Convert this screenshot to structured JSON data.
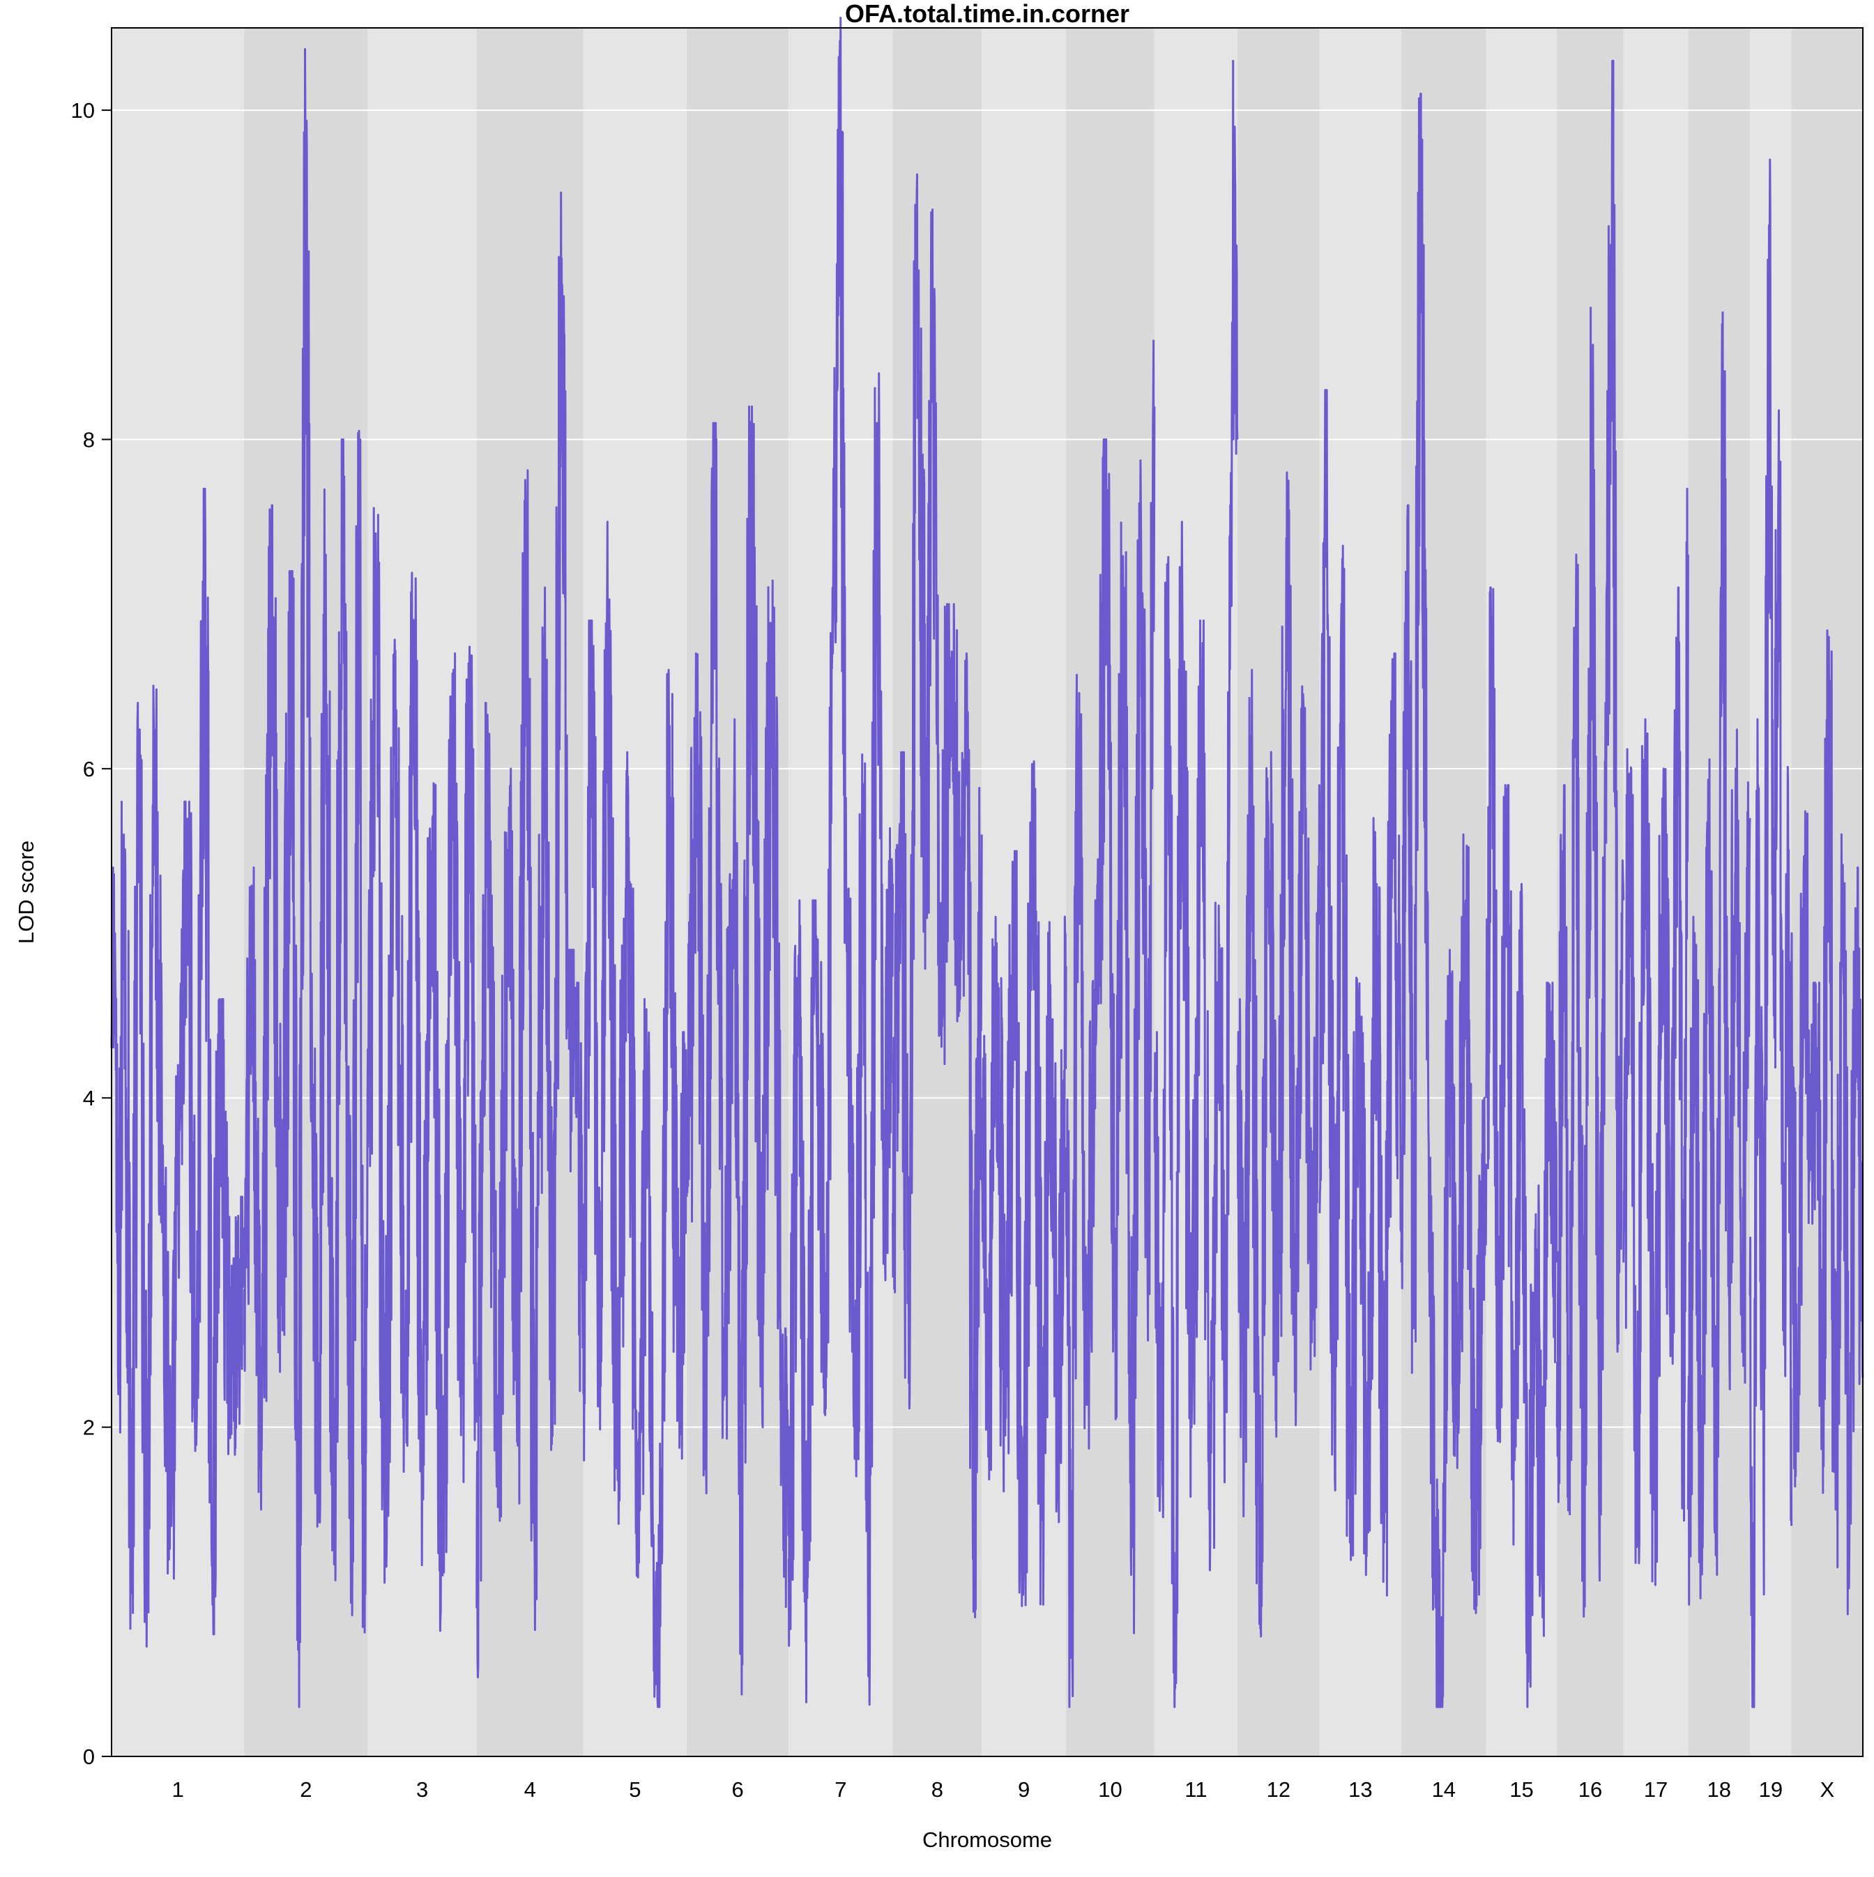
{
  "chart_data": {
    "type": "line",
    "title": "OFA.total.time.in.corner",
    "xlabel": "Chromosome",
    "ylabel": "LOD score",
    "ylim": [
      0,
      10.5
    ],
    "yticks": [
      0,
      2,
      4,
      6,
      8,
      10
    ],
    "grid": true,
    "legend": "none",
    "colors": {
      "line": "#6a5acd",
      "band_light": "#e5e5e5",
      "band_dark": "#d9d9d9",
      "gridline": "#ffffff"
    },
    "chromosomes": [
      {
        "label": "1",
        "length": 195,
        "peaks": [
          [
            0,
            4.3
          ],
          [
            5,
            5.0
          ],
          [
            10,
            2.2
          ],
          [
            18,
            5.6
          ],
          [
            30,
            1.3
          ],
          [
            40,
            6.0
          ],
          [
            52,
            1.2
          ],
          [
            62,
            6.3
          ],
          [
            75,
            3.5
          ],
          [
            88,
            1.4
          ],
          [
            100,
            3.8
          ],
          [
            112,
            5.4
          ],
          [
            125,
            2.0
          ],
          [
            137,
            7.3
          ],
          [
            148,
            1.3
          ],
          [
            160,
            4.2
          ],
          [
            175,
            2.4
          ],
          [
            195,
            3.0
          ]
        ]
      },
      {
        "label": "2",
        "length": 182,
        "peaks": [
          [
            0,
            2.5
          ],
          [
            12,
            5.0
          ],
          [
            25,
            1.5
          ],
          [
            40,
            7.2
          ],
          [
            55,
            2.8
          ],
          [
            70,
            6.8
          ],
          [
            80,
            0.9
          ],
          [
            90,
            10.0
          ],
          [
            100,
            3.9
          ],
          [
            110,
            2.0
          ],
          [
            120,
            7.3
          ],
          [
            132,
            1.5
          ],
          [
            145,
            7.6
          ],
          [
            158,
            1.4
          ],
          [
            170,
            8.0
          ],
          [
            176,
            1.1
          ],
          [
            182,
            4.3
          ]
        ]
      },
      {
        "label": "3",
        "length": 160,
        "peaks": [
          [
            0,
            3.7
          ],
          [
            12,
            7.2
          ],
          [
            25,
            1.4
          ],
          [
            40,
            6.4
          ],
          [
            55,
            2.2
          ],
          [
            68,
            6.9
          ],
          [
            80,
            1.8
          ],
          [
            95,
            5.7
          ],
          [
            110,
            1.1
          ],
          [
            125,
            6.3
          ],
          [
            138,
            2.2
          ],
          [
            150,
            6.5
          ],
          [
            160,
            2.3
          ]
        ]
      },
      {
        "label": "4",
        "length": 157,
        "peaks": [
          [
            0,
            0.9
          ],
          [
            15,
            6.0
          ],
          [
            30,
            1.9
          ],
          [
            48,
            5.6
          ],
          [
            60,
            2.0
          ],
          [
            72,
            7.6
          ],
          [
            85,
            1.4
          ],
          [
            100,
            6.7
          ],
          [
            112,
            2.3
          ],
          [
            125,
            9.1
          ],
          [
            135,
            4.5
          ],
          [
            145,
            4.3
          ],
          [
            157,
            2.8
          ]
        ]
      },
      {
        "label": "5",
        "length": 152,
        "peaks": [
          [
            0,
            2.2
          ],
          [
            12,
            6.5
          ],
          [
            25,
            2.5
          ],
          [
            35,
            7.1
          ],
          [
            50,
            2.0
          ],
          [
            65,
            5.7
          ],
          [
            80,
            1.3
          ],
          [
            95,
            4.2
          ],
          [
            105,
            0.5
          ],
          [
            115,
            1.5
          ],
          [
            125,
            6.2
          ],
          [
            140,
            2.4
          ],
          [
            152,
            4.0
          ]
        ]
      },
      {
        "label": "6",
        "length": 150,
        "peaks": [
          [
            0,
            3.4
          ],
          [
            15,
            6.3
          ],
          [
            28,
            2.2
          ],
          [
            40,
            7.7
          ],
          [
            55,
            2.4
          ],
          [
            70,
            5.9
          ],
          [
            80,
            1.1
          ],
          [
            95,
            7.8
          ],
          [
            110,
            2.6
          ],
          [
            125,
            6.8
          ],
          [
            140,
            2.2
          ],
          [
            150,
            1.4
          ]
        ]
      },
      {
        "label": "7",
        "length": 153,
        "peaks": [
          [
            0,
            1.2
          ],
          [
            15,
            4.8
          ],
          [
            25,
            0.7
          ],
          [
            40,
            4.8
          ],
          [
            55,
            2.6
          ],
          [
            65,
            6.7
          ],
          [
            75,
            10.3
          ],
          [
            85,
            5.0
          ],
          [
            98,
            2.0
          ],
          [
            110,
            5.9
          ],
          [
            118,
            0.9
          ],
          [
            130,
            8.1
          ],
          [
            140,
            3.5
          ],
          [
            153,
            5.3
          ]
        ]
      },
      {
        "label": "8",
        "length": 131,
        "peaks": [
          [
            0,
            3.3
          ],
          [
            12,
            5.7
          ],
          [
            25,
            2.2
          ],
          [
            35,
            9.3
          ],
          [
            50,
            5.3
          ],
          [
            58,
            9.0
          ],
          [
            70,
            4.8
          ],
          [
            85,
            6.6
          ],
          [
            100,
            5.0
          ],
          [
            110,
            6.3
          ],
          [
            118,
            1.2
          ],
          [
            131,
            5.6
          ]
        ]
      },
      {
        "label": "9",
        "length": 124,
        "peaks": [
          [
            0,
            4.0
          ],
          [
            10,
            1.9
          ],
          [
            20,
            4.7
          ],
          [
            35,
            2.2
          ],
          [
            48,
            5.1
          ],
          [
            60,
            1.1
          ],
          [
            75,
            5.8
          ],
          [
            90,
            1.4
          ],
          [
            100,
            4.7
          ],
          [
            112,
            2.0
          ],
          [
            124,
            4.8
          ]
        ]
      },
      {
        "label": "10",
        "length": 130,
        "peaks": [
          [
            0,
            3.7
          ],
          [
            8,
            0.7
          ],
          [
            18,
            6.2
          ],
          [
            30,
            2.5
          ],
          [
            45,
            4.8
          ],
          [
            60,
            7.6
          ],
          [
            72,
            2.6
          ],
          [
            85,
            7.1
          ],
          [
            98,
            1.3
          ],
          [
            110,
            7.6
          ],
          [
            120,
            2.9
          ],
          [
            130,
            8.2
          ]
        ]
      },
      {
        "label": "11",
        "length": 122,
        "peaks": [
          [
            0,
            4.0
          ],
          [
            10,
            1.8
          ],
          [
            20,
            7.2
          ],
          [
            30,
            0.6
          ],
          [
            40,
            7.1
          ],
          [
            55,
            2.1
          ],
          [
            70,
            6.5
          ],
          [
            82,
            1.3
          ],
          [
            95,
            4.9
          ],
          [
            105,
            2.1
          ],
          [
            112,
            7.2
          ],
          [
            118,
            9.9
          ],
          [
            122,
            8.0
          ]
        ]
      },
      {
        "label": "12",
        "length": 121,
        "peaks": [
          [
            0,
            4.2
          ],
          [
            10,
            2.0
          ],
          [
            20,
            6.2
          ],
          [
            32,
            1.1
          ],
          [
            45,
            5.8
          ],
          [
            60,
            2.4
          ],
          [
            72,
            7.4
          ],
          [
            85,
            2.6
          ],
          [
            98,
            6.1
          ],
          [
            110,
            2.8
          ],
          [
            121,
            5.5
          ]
        ]
      },
      {
        "label": "13",
        "length": 120,
        "peaks": [
          [
            0,
            3.3
          ],
          [
            10,
            7.9
          ],
          [
            22,
            2.0
          ],
          [
            32,
            7.0
          ],
          [
            45,
            1.4
          ],
          [
            58,
            4.6
          ],
          [
            70,
            1.6
          ],
          [
            82,
            5.3
          ],
          [
            95,
            1.3
          ],
          [
            108,
            6.3
          ],
          [
            120,
            3.5
          ]
        ]
      },
      {
        "label": "14",
        "length": 125,
        "peaks": [
          [
            0,
            3.0
          ],
          [
            10,
            7.2
          ],
          [
            18,
            2.6
          ],
          [
            28,
            9.7
          ],
          [
            40,
            3.8
          ],
          [
            50,
            1.4
          ],
          [
            60,
            0.4
          ],
          [
            70,
            4.5
          ],
          [
            82,
            2.2
          ],
          [
            95,
            5.2
          ],
          [
            108,
            1.3
          ],
          [
            125,
            3.6
          ]
        ]
      },
      {
        "label": "15",
        "length": 104,
        "peaks": [
          [
            0,
            4.0
          ],
          [
            8,
            6.7
          ],
          [
            18,
            2.3
          ],
          [
            30,
            5.5
          ],
          [
            42,
            1.8
          ],
          [
            52,
            5.3
          ],
          [
            62,
            0.8
          ],
          [
            72,
            3.2
          ],
          [
            82,
            1.2
          ],
          [
            92,
            4.3
          ],
          [
            104,
            3.0
          ]
        ]
      },
      {
        "label": "16",
        "length": 98,
        "peaks": [
          [
            0,
            2.0
          ],
          [
            10,
            5.5
          ],
          [
            18,
            1.8
          ],
          [
            28,
            6.9
          ],
          [
            40,
            1.5
          ],
          [
            52,
            8.4
          ],
          [
            62,
            1.6
          ],
          [
            72,
            6.0
          ],
          [
            82,
            9.9
          ],
          [
            90,
            3.0
          ],
          [
            98,
            5.2
          ]
        ]
      },
      {
        "label": "17",
        "length": 95,
        "peaks": [
          [
            0,
            3.0
          ],
          [
            10,
            5.8
          ],
          [
            20,
            1.6
          ],
          [
            32,
            6.3
          ],
          [
            45,
            1.5
          ],
          [
            58,
            5.6
          ],
          [
            70,
            2.8
          ],
          [
            80,
            6.7
          ],
          [
            88,
            1.7
          ],
          [
            95,
            7.3
          ]
        ]
      },
      {
        "label": "18",
        "length": 91,
        "peaks": [
          [
            0,
            1.5
          ],
          [
            10,
            4.7
          ],
          [
            20,
            1.5
          ],
          [
            30,
            5.7
          ],
          [
            42,
            1.8
          ],
          [
            50,
            8.7
          ],
          [
            60,
            2.8
          ],
          [
            70,
            6.0
          ],
          [
            80,
            2.7
          ],
          [
            91,
            5.7
          ]
        ]
      },
      {
        "label": "19",
        "length": 61,
        "peaks": [
          [
            0,
            2.8
          ],
          [
            5,
            0.7
          ],
          [
            12,
            5.9
          ],
          [
            20,
            1.5
          ],
          [
            28,
            9.3
          ],
          [
            35,
            4.5
          ],
          [
            42,
            7.8
          ],
          [
            50,
            2.5
          ],
          [
            56,
            5.9
          ],
          [
            61,
            1.4
          ]
        ]
      },
      {
        "label": "X",
        "length": 105,
        "peaks": [
          [
            0,
            4.6
          ],
          [
            8,
            2.0
          ],
          [
            18,
            5.4
          ],
          [
            28,
            3.9
          ],
          [
            38,
            4.3
          ],
          [
            45,
            2.0
          ],
          [
            55,
            6.8
          ],
          [
            65,
            1.5
          ],
          [
            75,
            5.3
          ],
          [
            85,
            1.2
          ],
          [
            95,
            5.0
          ],
          [
            105,
            2.3
          ]
        ]
      }
    ]
  }
}
